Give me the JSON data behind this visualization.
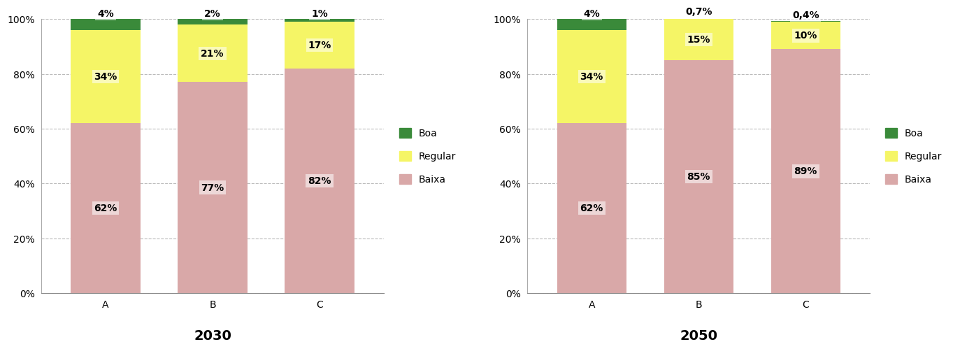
{
  "charts": [
    {
      "title": "2030",
      "categories": [
        "A",
        "B",
        "C"
      ],
      "baixa": [
        62,
        77,
        82
      ],
      "regular": [
        34,
        21,
        17
      ],
      "boa": [
        4,
        2,
        1
      ],
      "labels_baixa": [
        "62%",
        "77%",
        "82%"
      ],
      "labels_regular": [
        "34%",
        "21%",
        "17%"
      ],
      "labels_boa": [
        "4%",
        "2%",
        "1%"
      ]
    },
    {
      "title": "2050",
      "categories": [
        "A",
        "B",
        "C"
      ],
      "baixa": [
        62,
        85,
        89
      ],
      "regular": [
        34,
        15,
        10
      ],
      "boa": [
        4,
        0.7,
        0.4
      ],
      "labels_baixa": [
        "62%",
        "85%",
        "89%"
      ],
      "labels_regular": [
        "34%",
        "15%",
        "10%"
      ],
      "labels_boa": [
        "4%",
        "0,7%",
        "0,4%"
      ]
    }
  ],
  "color_baixa": "#d9a8a8",
  "color_regular": "#f5f566",
  "color_boa": "#3a8a3a",
  "bar_width": 0.65,
  "ylim": [
    0,
    100
  ],
  "yticks": [
    0,
    20,
    40,
    60,
    80,
    100
  ],
  "ytick_labels": [
    "0%",
    "20%",
    "40%",
    "60%",
    "80%",
    "100%"
  ],
  "legend_labels": [
    "Boa",
    "Regular",
    "Baixa"
  ],
  "background_color": "#ffffff",
  "grid_color": "#aaaaaa",
  "label_fontsize": 10,
  "title_fontsize": 14,
  "tick_fontsize": 10
}
